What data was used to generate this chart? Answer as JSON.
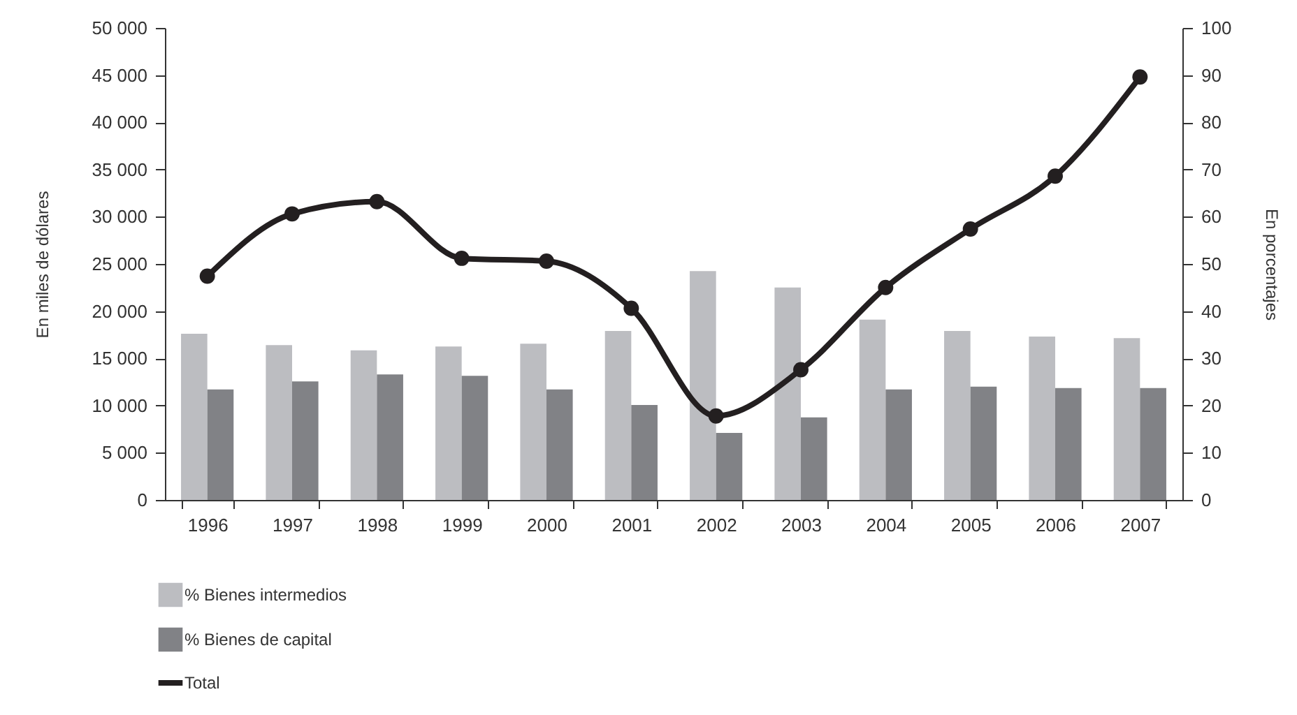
{
  "chart_data": {
    "type": "bar",
    "categories": [
      "1996",
      "1997",
      "1998",
      "1999",
      "2000",
      "2001",
      "2002",
      "2003",
      "2004",
      "2005",
      "2006",
      "2007"
    ],
    "series": [
      {
        "name": "% Bienes intermedios",
        "type": "bar",
        "axis": "y2",
        "color": "#bcbdc1",
        "values": [
          35.2,
          32.8,
          31.7,
          32.5,
          33.1,
          35.8,
          48.5,
          45,
          38.2,
          35.8,
          34.6,
          34.3
        ]
      },
      {
        "name": "% Bienes de capital",
        "type": "bar",
        "axis": "y2",
        "color": "#818286",
        "values": [
          23.4,
          25.1,
          26.6,
          26.3,
          23.4,
          20.1,
          14.2,
          17.5,
          23.4,
          24,
          23.7,
          23.7
        ]
      },
      {
        "name": "Total",
        "type": "line",
        "axis": "y",
        "color": "#231f20",
        "values": [
          23700,
          30300,
          31600,
          25600,
          25300,
          20300,
          8900,
          13800,
          22500,
          28700,
          34300,
          44800
        ]
      }
    ],
    "ylabel": "En miles de dólares",
    "y2label": "En porcentajes",
    "ylim": [
      0,
      50000
    ],
    "yticks": [
      0,
      {
        "value": 5000,
        "label": "5 000"
      },
      {
        "value": 10000,
        "label": "10 000"
      },
      {
        "value": 15000,
        "label": "15 000"
      },
      {
        "value": 20000,
        "label": "20 000"
      },
      {
        "value": 25000,
        "label": "25 000"
      },
      {
        "value": 30000,
        "label": "30 000"
      },
      {
        "value": 35000,
        "label": "35 000"
      },
      {
        "value": 40000,
        "label": "40 000"
      },
      {
        "value": 45000,
        "label": "45 000"
      },
      {
        "value": 50000,
        "label": "50 000"
      }
    ],
    "y2lim": [
      0,
      100
    ],
    "y2ticks": [
      0,
      10,
      20,
      30,
      40,
      50,
      60,
      70,
      80,
      90,
      100
    ],
    "legend": "bottom left",
    "marker": "circle",
    "line_style": "solid"
  }
}
